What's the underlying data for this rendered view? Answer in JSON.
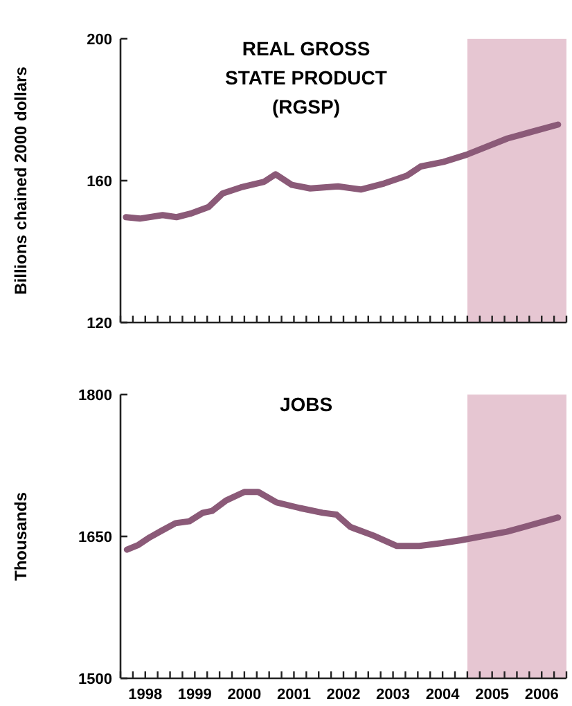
{
  "chart_data": [
    {
      "type": "line",
      "title": "REAL GROSS\nSTATE PRODUCT\n(RGSP)",
      "ylabel": "Billions chained 2000 dollars",
      "xlim": [
        1998,
        2007
      ],
      "xticks": [
        {
          "value": 1998,
          "label": null
        },
        {
          "value": 1998.25,
          "label": null
        },
        {
          "value": 1998.5,
          "label": null
        },
        {
          "value": 1998.75,
          "label": null
        },
        {
          "value": 1999,
          "label": null
        },
        {
          "value": 1999.25,
          "label": null
        },
        {
          "value": 1999.5,
          "label": null
        },
        {
          "value": 1999.75,
          "label": null
        },
        {
          "value": 2000,
          "label": null
        },
        {
          "value": 2000.25,
          "label": null
        },
        {
          "value": 2000.5,
          "label": null
        },
        {
          "value": 2000.75,
          "label": null
        },
        {
          "value": 2001,
          "label": null
        },
        {
          "value": 2001.25,
          "label": null
        },
        {
          "value": 2001.5,
          "label": null
        },
        {
          "value": 2001.75,
          "label": null
        },
        {
          "value": 2002,
          "label": null
        },
        {
          "value": 2002.25,
          "label": null
        },
        {
          "value": 2002.5,
          "label": null
        },
        {
          "value": 2002.75,
          "label": null
        },
        {
          "value": 2003,
          "label": null
        },
        {
          "value": 2003.25,
          "label": null
        },
        {
          "value": 2003.5,
          "label": null
        },
        {
          "value": 2003.75,
          "label": null
        },
        {
          "value": 2004,
          "label": null
        },
        {
          "value": 2004.25,
          "label": null
        },
        {
          "value": 2004.5,
          "label": null
        },
        {
          "value": 2004.75,
          "label": null
        },
        {
          "value": 2005,
          "label": null
        },
        {
          "value": 2005.25,
          "label": null
        },
        {
          "value": 2005.5,
          "label": null
        },
        {
          "value": 2005.75,
          "label": null
        },
        {
          "value": 2006,
          "label": null
        },
        {
          "value": 2006.25,
          "label": null
        },
        {
          "value": 2006.5,
          "label": null
        },
        {
          "value": 2006.75,
          "label": null
        },
        {
          "value": 2007,
          "label": null
        }
      ],
      "ylim": [
        120,
        200
      ],
      "yticks": [
        120,
        160,
        200
      ],
      "tick_labels": "y",
      "grid": false,
      "marker": "none",
      "line_style": "solid",
      "x": [
        1998.11,
        1998.39,
        1998.85,
        1999.13,
        1999.41,
        1999.78,
        2000.06,
        2000.43,
        2000.9,
        2001.13,
        2001.46,
        2001.83,
        2002.39,
        2002.85,
        2003.32,
        2003.78,
        2004.06,
        2004.52,
        2004.98,
        2005.81,
        2006.83
      ],
      "series": [
        {
          "color": "#8b5a78",
          "values": [
            149.7,
            149.3,
            150.3,
            149.7,
            150.7,
            152.6,
            156.4,
            158.1,
            159.7,
            161.8,
            158.8,
            157.8,
            158.4,
            157.5,
            159.2,
            161.4,
            164,
            165.3,
            167.3,
            171.9,
            175.8
          ]
        }
      ],
      "bands": [
        {
          "axis": "x",
          "from": 2005,
          "to": 2007,
          "color": "#e6c6d2"
        }
      ]
    },
    {
      "type": "line",
      "title": "JOBS",
      "ylabel": "Thousands",
      "xlim": [
        1998,
        2007
      ],
      "xticks": [
        {
          "value": 1998,
          "label": null
        },
        {
          "value": 1998.25,
          "label": null
        },
        {
          "value": 1998.5,
          "label": "1998"
        },
        {
          "value": 1998.75,
          "label": null
        },
        {
          "value": 1999,
          "label": null
        },
        {
          "value": 1999.25,
          "label": null
        },
        {
          "value": 1999.5,
          "label": "1999"
        },
        {
          "value": 1999.75,
          "label": null
        },
        {
          "value": 2000,
          "label": null
        },
        {
          "value": 2000.25,
          "label": null
        },
        {
          "value": 2000.5,
          "label": "2000"
        },
        {
          "value": 2000.75,
          "label": null
        },
        {
          "value": 2001,
          "label": null
        },
        {
          "value": 2001.25,
          "label": null
        },
        {
          "value": 2001.5,
          "label": "2001"
        },
        {
          "value": 2001.75,
          "label": null
        },
        {
          "value": 2002,
          "label": null
        },
        {
          "value": 2002.25,
          "label": null
        },
        {
          "value": 2002.5,
          "label": "2002"
        },
        {
          "value": 2002.75,
          "label": null
        },
        {
          "value": 2003,
          "label": null
        },
        {
          "value": 2003.25,
          "label": null
        },
        {
          "value": 2003.5,
          "label": "2003"
        },
        {
          "value": 2003.75,
          "label": null
        },
        {
          "value": 2004,
          "label": null
        },
        {
          "value": 2004.25,
          "label": null
        },
        {
          "value": 2004.5,
          "label": "2004"
        },
        {
          "value": 2004.75,
          "label": null
        },
        {
          "value": 2005,
          "label": null
        },
        {
          "value": 2005.25,
          "label": null
        },
        {
          "value": 2005.5,
          "label": "2005"
        },
        {
          "value": 2005.75,
          "label": null
        },
        {
          "value": 2006,
          "label": null
        },
        {
          "value": 2006.25,
          "label": null
        },
        {
          "value": 2006.5,
          "label": "2006"
        },
        {
          "value": 2006.75,
          "label": null
        },
        {
          "value": 2007,
          "label": null
        }
      ],
      "ylim": [
        1500,
        1800
      ],
      "yticks": [
        1500,
        1650,
        1800
      ],
      "grid": false,
      "marker": "none",
      "line_style": "solid",
      "x": [
        1998.13,
        1998.36,
        1998.59,
        1998.83,
        1999.11,
        1999.39,
        1999.66,
        1999.85,
        2000.13,
        2000.5,
        2000.78,
        2001.15,
        2001.62,
        2002.08,
        2002.36,
        2002.64,
        2003.1,
        2003.57,
        2004.03,
        2004.5,
        2004.87,
        2005.8,
        2006.83
      ],
      "series": [
        {
          "color": "#8b5a78",
          "values": [
            1636,
            1641,
            1649,
            1656,
            1664,
            1666,
            1675,
            1677,
            1688,
            1697,
            1697,
            1686,
            1680,
            1675,
            1673,
            1660,
            1651,
            1640,
            1640,
            1643,
            1646,
            1655,
            1670
          ]
        }
      ],
      "bands": [
        {
          "axis": "x",
          "from": 2005,
          "to": 2007,
          "color": "#e6c6d2"
        }
      ]
    }
  ]
}
